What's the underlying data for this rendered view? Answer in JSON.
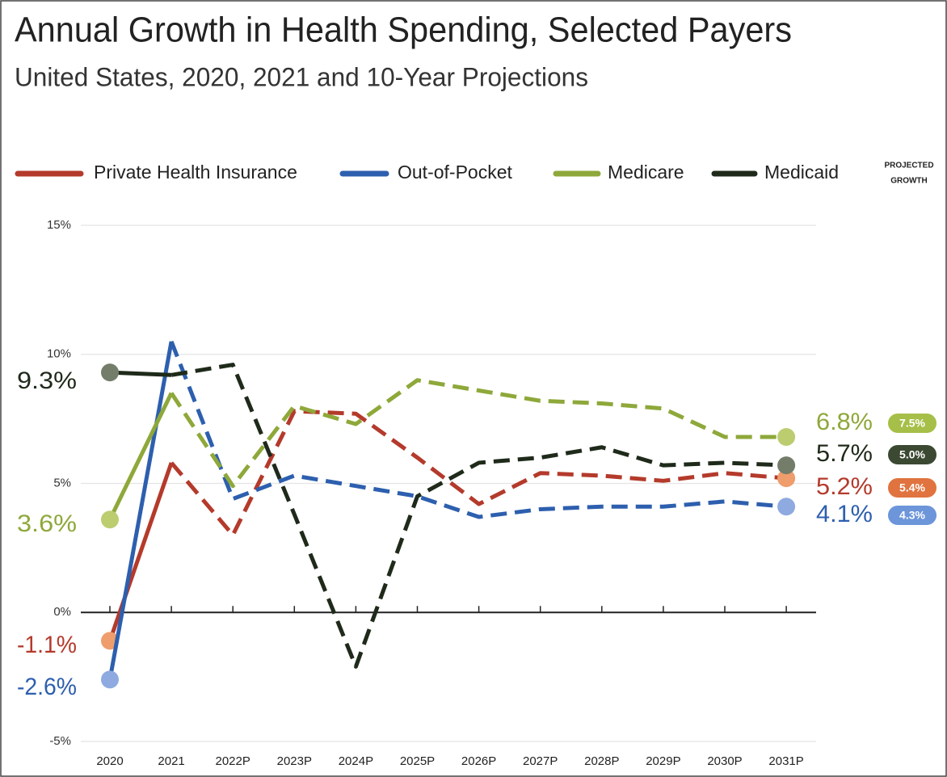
{
  "chart_data": {
    "type": "line",
    "title": "Annual Growth in Health Spending, Selected Payers",
    "subtitle": "United States, 2020, 2021 and 10-Year Projections",
    "categories": [
      "2020",
      "2021",
      "2022P",
      "2023P",
      "2024P",
      "2025P",
      "2026P",
      "2027P",
      "2028P",
      "2029P",
      "2030P",
      "2031P"
    ],
    "dashed_from": "2021",
    "projected_growth_title": [
      "PROJECTED",
      "GROWTH"
    ],
    "ylim": [
      -5,
      15
    ],
    "yticks": [
      {
        "value": -5,
        "label": "-5%"
      },
      {
        "value": 0,
        "label": "0%"
      },
      {
        "value": 5,
        "label": "5%"
      },
      {
        "value": 10,
        "label": "10%"
      },
      {
        "value": 15,
        "label": "15%"
      }
    ],
    "grid": true,
    "legend": "top",
    "series": [
      {
        "name": "Private Health Insurance",
        "color": "#b43a2b",
        "marker_color": "#ef9d6c",
        "values": [
          -1.1,
          5.8,
          3.0,
          7.8,
          7.7,
          6.0,
          4.2,
          5.4,
          5.3,
          5.1,
          5.4,
          5.2
        ],
        "value_labels": [
          "-1.1%",
          null,
          null,
          null,
          null,
          null,
          null,
          null,
          null,
          null,
          null,
          "5.2%"
        ],
        "projected_growth": {
          "value": 5.4,
          "label": "5.4%"
        },
        "pill_color": "#e0733f"
      },
      {
        "name": "Out-of-Pocket",
        "color": "#2d5fae",
        "marker_color": "#8eaae0",
        "values": [
          -2.6,
          10.5,
          4.4,
          5.3,
          4.9,
          4.5,
          3.7,
          4.0,
          4.1,
          4.1,
          4.3,
          4.1
        ],
        "value_labels": [
          "-2.6%",
          null,
          null,
          null,
          null,
          null,
          null,
          null,
          null,
          null,
          null,
          "4.1%"
        ],
        "projected_growth": {
          "value": 4.3,
          "label": "4.3%"
        },
        "pill_color": "#6c95da"
      },
      {
        "name": "Medicare",
        "color": "#8ea83a",
        "marker_color": "#bccd70",
        "values": [
          3.6,
          8.5,
          4.9,
          8.0,
          7.3,
          9.0,
          8.6,
          8.2,
          8.1,
          7.9,
          6.8,
          6.8
        ],
        "value_labels": [
          "3.6%",
          null,
          null,
          null,
          null,
          null,
          null,
          null,
          null,
          null,
          null,
          "6.8%"
        ],
        "projected_growth": {
          "value": 7.5,
          "label": "7.5%"
        },
        "pill_color": "#a6bf48"
      },
      {
        "name": "Medicaid",
        "color": "#1f2a1a",
        "marker_color": "#737d69",
        "values": [
          9.3,
          9.2,
          9.6,
          3.8,
          -2.1,
          4.5,
          5.8,
          6.0,
          6.4,
          5.7,
          5.8,
          5.7
        ],
        "value_labels": [
          "9.3%",
          null,
          null,
          null,
          null,
          null,
          null,
          null,
          null,
          null,
          null,
          "5.7%"
        ],
        "projected_growth": {
          "value": 5.0,
          "label": "5.0%"
        },
        "pill_color": "#3c4932"
      }
    ]
  }
}
